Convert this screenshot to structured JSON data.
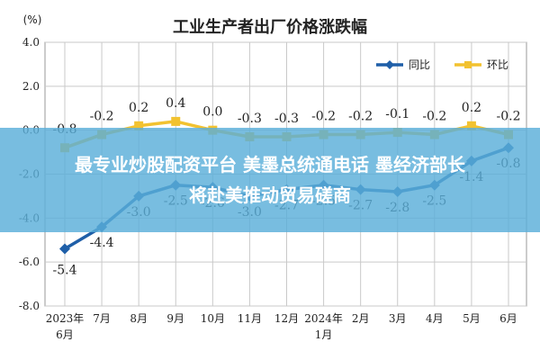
{
  "chart_data": {
    "type": "line",
    "title": "工业生产者出厂价格涨跌幅",
    "ylabel": "(%)",
    "xlabel": "",
    "ylim": [
      -8.0,
      4.0
    ],
    "yticks": [
      "4.0",
      "2.0",
      "0.0",
      "-2.0",
      "-4.0",
      "-6.0",
      "-8.0"
    ],
    "grid": true,
    "legend_position": "top-right",
    "categories": [
      "2023年\n6月",
      "7月",
      "8月",
      "9月",
      "10月",
      "11月",
      "12月",
      "2024年\n1月",
      "2月",
      "3月",
      "4月",
      "5月",
      "6月"
    ],
    "series": [
      {
        "name": "同比",
        "color": "#1f5fa8",
        "values": [
          -5.4,
          -4.4,
          -3.0,
          -2.5,
          -2.6,
          -3.0,
          -2.7,
          -2.5,
          -2.7,
          -2.8,
          -2.5,
          -1.4,
          -0.8
        ],
        "labels": [
          "-5.4",
          "-4.4",
          "-3.0",
          "-2.5",
          "-2.6",
          "-3.0",
          "-2.7",
          "-2.5",
          "-2.7",
          "-2.8",
          "-2.5",
          "-1.4",
          "-0.8"
        ]
      },
      {
        "name": "环比",
        "color": "#f2c230",
        "values": [
          -0.8,
          -0.2,
          0.2,
          0.4,
          0.0,
          -0.3,
          -0.3,
          -0.2,
          -0.2,
          -0.1,
          -0.2,
          0.2,
          -0.2
        ],
        "labels": [
          "-0.8",
          "-0.2",
          "0.2",
          "0.4",
          "0.0",
          "-0.3",
          "-0.3",
          "-0.2",
          "-0.2",
          "-0.1",
          "-0.2",
          "0.2",
          "-0.2"
        ]
      }
    ]
  },
  "overlay": {
    "line1": "最专业炒股配资平台 美墨总统通电话 墨经济部长",
    "line2": "将赴美推动贸易磋商"
  }
}
